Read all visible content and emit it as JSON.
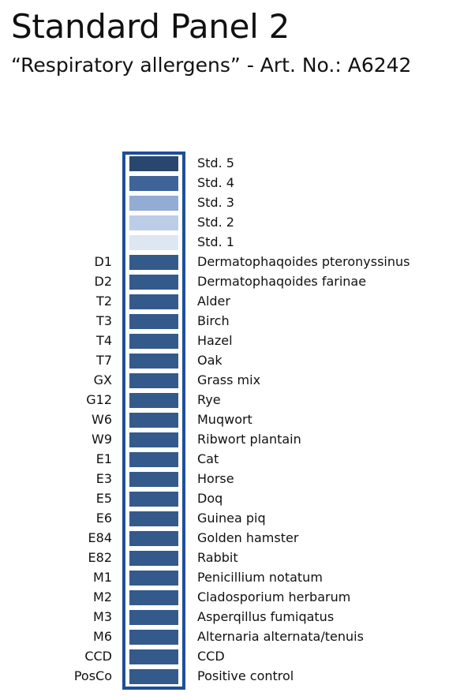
{
  "title": "Standard Panel 2",
  "subtitle": "“Respiratory allergens” - Art. No.: A6242",
  "colors": {
    "frame": "#1f4e96",
    "band": "#345a8c"
  },
  "rows": [
    {
      "code": "",
      "label": "Std. 5",
      "color": "#29476e"
    },
    {
      "code": "",
      "label": "Std. 4",
      "color": "#3f6499"
    },
    {
      "code": "",
      "label": "Std. 3",
      "color": "#92acd6"
    },
    {
      "code": "",
      "label": "Std. 2",
      "color": "#bccde8"
    },
    {
      "code": "",
      "label": "Std. 1",
      "color": "#dfe6f3"
    },
    {
      "code": "D1",
      "label": "Dermatophaqoides pteronyssinus",
      "color": "#345a8c"
    },
    {
      "code": "D2",
      "label": "Dermatophaqoides farinae",
      "color": "#345a8c"
    },
    {
      "code": "T2",
      "label": "Alder",
      "color": "#345a8c"
    },
    {
      "code": "T3",
      "label": "Birch",
      "color": "#345a8c"
    },
    {
      "code": "T4",
      "label": "Hazel",
      "color": "#345a8c"
    },
    {
      "code": "T7",
      "label": "Oak",
      "color": "#345a8c"
    },
    {
      "code": "GX",
      "label": "Grass mix",
      "color": "#345a8c"
    },
    {
      "code": "G12",
      "label": "Rye",
      "color": "#345a8c"
    },
    {
      "code": "W6",
      "label": "Muqwort",
      "color": "#345a8c"
    },
    {
      "code": "W9",
      "label": "Ribwort plantain",
      "color": "#345a8c"
    },
    {
      "code": "E1",
      "label": "Cat",
      "color": "#345a8c"
    },
    {
      "code": "E3",
      "label": "Horse",
      "color": "#345a8c"
    },
    {
      "code": "E5",
      "label": "Doq",
      "color": "#345a8c"
    },
    {
      "code": "E6",
      "label": "Guinea piq",
      "color": "#345a8c"
    },
    {
      "code": "E84",
      "label": "Golden hamster",
      "color": "#345a8c"
    },
    {
      "code": "E82",
      "label": "Rabbit",
      "color": "#345a8c"
    },
    {
      "code": "M1",
      "label": "Penicillium notatum",
      "color": "#345a8c"
    },
    {
      "code": "M2",
      "label": "Cladosporium herbarum",
      "color": "#345a8c"
    },
    {
      "code": "M3",
      "label": "Asperqillus fumiqatus",
      "color": "#345a8c"
    },
    {
      "code": "M6",
      "label": "Alternaria alternata/tenuis",
      "color": "#345a8c"
    },
    {
      "code": "CCD",
      "label": "CCD",
      "color": "#345a8c"
    },
    {
      "code": "PosCo",
      "label": "Positive control",
      "color": "#345a8c"
    }
  ]
}
